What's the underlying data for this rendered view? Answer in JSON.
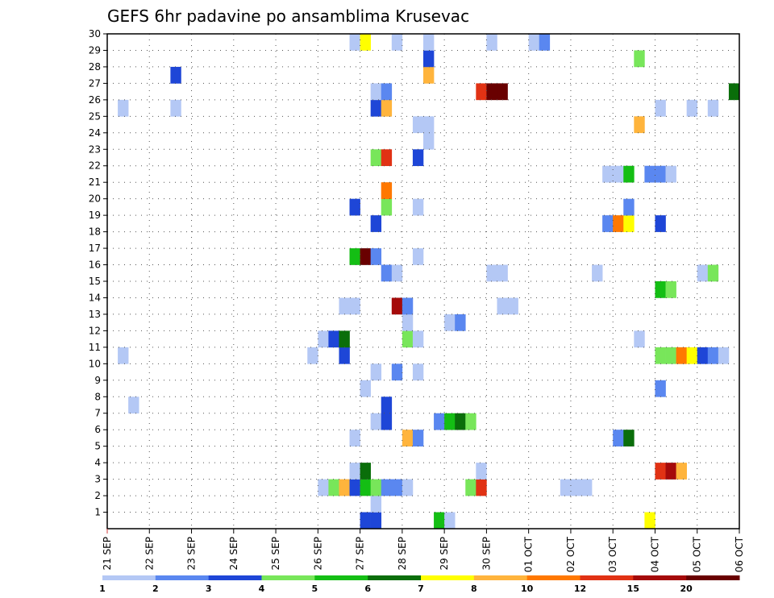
{
  "chart_data": {
    "type": "heatmap",
    "title": "GEFS 6hr padavine po ansamblima Krusevac",
    "y_ticks": [
      "1",
      "2",
      "3",
      "4",
      "5",
      "6",
      "7",
      "8",
      "9",
      "10",
      "11",
      "12",
      "13",
      "14",
      "15",
      "16",
      "17",
      "18",
      "19",
      "20",
      "21",
      "22",
      "23",
      "24",
      "25",
      "26",
      "27",
      "28",
      "29",
      "30"
    ],
    "x_ticks": [
      "21 SEP",
      "22 SEP",
      "23 SEP",
      "24 SEP",
      "25 SEP",
      "26 SEP",
      "27 SEP",
      "28 SEP",
      "29 SEP",
      "30 SEP",
      "01 OCT",
      "02 OCT",
      "03 OCT",
      "04 OCT",
      "05 OCT",
      "06 OCT"
    ],
    "x_unit": "days from 21 SEP, 6-hour steps",
    "xlim": [
      0,
      15
    ],
    "ylim": [
      0,
      30
    ],
    "grid": true,
    "legend": {
      "placement": "bottom",
      "bounds": [
        1,
        2,
        3,
        4,
        5,
        6,
        7,
        8,
        10,
        12,
        15,
        20
      ],
      "bound_labels": [
        "1",
        "2",
        "3",
        "4",
        "5",
        "6",
        "7",
        "8",
        "10",
        "12",
        "15",
        "20"
      ],
      "colors": [
        "#b4c8f5",
        "#5a87f0",
        "#1e46d7",
        "#78e65a",
        "#14be14",
        "#0a6e0a",
        "#ffff00",
        "#ffb43c",
        "#ff7800",
        "#e13214",
        "#a50a0a",
        "#690000"
      ]
    },
    "cells": [
      [
        6.0,
        0,
        2
      ],
      [
        6.25,
        0,
        2
      ],
      [
        7.75,
        0,
        4
      ],
      [
        8.0,
        0,
        0
      ],
      [
        12.75,
        0,
        6
      ],
      [
        6.25,
        1,
        0
      ],
      [
        5.0,
        2,
        0
      ],
      [
        5.25,
        2,
        3
      ],
      [
        5.5,
        2,
        7
      ],
      [
        5.75,
        2,
        2
      ],
      [
        6.0,
        2,
        4
      ],
      [
        6.25,
        2,
        3
      ],
      [
        6.5,
        2,
        1
      ],
      [
        6.75,
        2,
        1
      ],
      [
        7.0,
        2,
        0
      ],
      [
        8.5,
        2,
        3
      ],
      [
        8.75,
        2,
        9
      ],
      [
        10.75,
        2,
        0
      ],
      [
        11.0,
        2,
        0
      ],
      [
        11.25,
        2,
        0
      ],
      [
        5.75,
        3,
        0
      ],
      [
        6.0,
        3,
        5
      ],
      [
        8.75,
        3,
        0
      ],
      [
        13.0,
        3,
        9
      ],
      [
        13.25,
        3,
        10
      ],
      [
        13.5,
        3,
        7
      ],
      [
        5.75,
        5,
        0
      ],
      [
        7.0,
        5,
        7
      ],
      [
        7.25,
        5,
        1
      ],
      [
        12.0,
        5,
        1
      ],
      [
        12.25,
        5,
        5
      ],
      [
        6.25,
        6,
        0
      ],
      [
        6.5,
        6,
        2
      ],
      [
        7.75,
        6,
        1
      ],
      [
        8.0,
        6,
        4
      ],
      [
        8.25,
        6,
        5
      ],
      [
        8.5,
        6,
        3
      ],
      [
        0.5,
        7,
        0
      ],
      [
        6.5,
        7,
        2
      ],
      [
        6.0,
        8,
        0
      ],
      [
        13.0,
        8,
        1
      ],
      [
        6.25,
        9,
        0
      ],
      [
        6.75,
        9,
        1
      ],
      [
        7.25,
        9,
        0
      ],
      [
        0.25,
        10,
        0
      ],
      [
        4.75,
        10,
        0
      ],
      [
        5.5,
        10,
        2
      ],
      [
        13.0,
        10,
        3
      ],
      [
        13.25,
        10,
        3
      ],
      [
        13.5,
        10,
        8
      ],
      [
        13.75,
        10,
        6
      ],
      [
        14.0,
        10,
        2
      ],
      [
        14.25,
        10,
        1
      ],
      [
        14.5,
        10,
        0
      ],
      [
        5.0,
        11,
        0
      ],
      [
        5.25,
        11,
        2
      ],
      [
        5.5,
        11,
        5
      ],
      [
        7.0,
        11,
        3
      ],
      [
        7.25,
        11,
        0
      ],
      [
        12.5,
        11,
        0
      ],
      [
        7.0,
        12,
        0
      ],
      [
        8.0,
        12,
        0
      ],
      [
        8.25,
        12,
        1
      ],
      [
        5.5,
        13,
        0
      ],
      [
        5.75,
        13,
        0
      ],
      [
        6.75,
        13,
        10
      ],
      [
        7.0,
        13,
        1
      ],
      [
        9.25,
        13,
        0
      ],
      [
        9.5,
        13,
        0
      ],
      [
        13.0,
        14,
        4
      ],
      [
        13.25,
        14,
        3
      ],
      [
        6.5,
        15,
        1
      ],
      [
        6.75,
        15,
        0
      ],
      [
        9.0,
        15,
        0
      ],
      [
        9.25,
        15,
        0
      ],
      [
        11.5,
        15,
        0
      ],
      [
        14.0,
        15,
        0
      ],
      [
        14.25,
        15,
        3
      ],
      [
        5.75,
        16,
        4
      ],
      [
        6.0,
        16,
        11
      ],
      [
        6.25,
        16,
        1
      ],
      [
        7.25,
        16,
        0
      ],
      [
        6.25,
        18,
        2
      ],
      [
        11.75,
        18,
        1
      ],
      [
        12.0,
        18,
        8
      ],
      [
        12.25,
        18,
        6
      ],
      [
        13.0,
        18,
        2
      ],
      [
        5.75,
        19,
        2
      ],
      [
        6.5,
        19,
        3
      ],
      [
        7.25,
        19,
        0
      ],
      [
        12.25,
        19,
        1
      ],
      [
        6.5,
        20,
        8
      ],
      [
        11.75,
        21,
        0
      ],
      [
        12.0,
        21,
        0
      ],
      [
        12.25,
        21,
        4
      ],
      [
        12.75,
        21,
        1
      ],
      [
        13.0,
        21,
        1
      ],
      [
        13.25,
        21,
        0
      ],
      [
        6.25,
        22,
        3
      ],
      [
        6.5,
        22,
        9
      ],
      [
        7.25,
        22,
        2
      ],
      [
        7.5,
        23,
        0
      ],
      [
        7.25,
        24,
        0
      ],
      [
        7.5,
        24,
        0
      ],
      [
        12.5,
        24,
        7
      ],
      [
        0.25,
        25,
        0
      ],
      [
        1.5,
        25,
        0
      ],
      [
        6.25,
        25,
        2
      ],
      [
        6.5,
        25,
        7
      ],
      [
        13.0,
        25,
        0
      ],
      [
        13.75,
        25,
        0
      ],
      [
        14.25,
        25,
        0
      ],
      [
        6.25,
        26,
        0
      ],
      [
        6.5,
        26,
        1
      ],
      [
        8.75,
        26,
        9
      ],
      [
        9.0,
        26,
        11
      ],
      [
        9.25,
        26,
        11
      ],
      [
        14.75,
        26,
        5
      ],
      [
        1.5,
        27,
        2
      ],
      [
        7.5,
        27,
        7
      ],
      [
        7.5,
        28,
        2
      ],
      [
        12.5,
        28,
        3
      ],
      [
        5.75,
        29,
        0
      ],
      [
        6.0,
        29,
        6
      ],
      [
        6.75,
        29,
        0
      ],
      [
        7.5,
        29,
        0
      ],
      [
        9.0,
        29,
        0
      ],
      [
        10.0,
        29,
        0
      ],
      [
        10.25,
        29,
        1
      ]
    ]
  }
}
